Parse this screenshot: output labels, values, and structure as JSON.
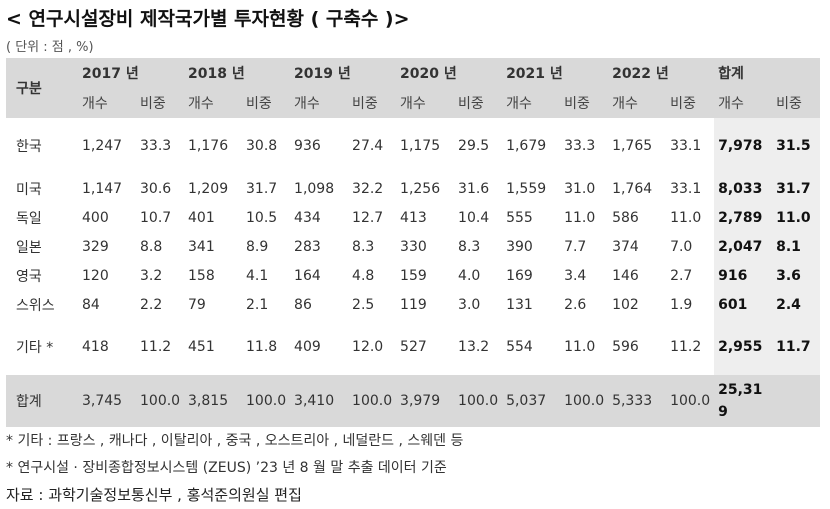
{
  "title": "< 연구시설장비 제작국가별 투자현황 ( 구축수 )>",
  "unit": "( 단위 : 점 , %)",
  "table": {
    "gubun": "구분",
    "years": [
      "2017 년",
      "2018 년",
      "2019 년",
      "2020 년",
      "2021 년",
      "2022 년"
    ],
    "total_header": "합계",
    "sub_count": "개수",
    "sub_ratio": "비중",
    "rows": [
      {
        "label": "한국",
        "cells": [
          "1,247",
          "33.3",
          "1,176",
          "30.8",
          "936",
          "27.4",
          "1,175",
          "29.5",
          "1,679",
          "33.3",
          "1,765",
          "33.1"
        ],
        "total": "7,978",
        "ratio": "31.5"
      },
      {
        "label": "미국",
        "cells": [
          "1,147",
          "30.6",
          "1,209",
          "31.7",
          "1,098",
          "32.2",
          "1,256",
          "31.6",
          "1,559",
          "31.0",
          "1,764",
          "33.1"
        ],
        "total": "8,033",
        "ratio": "31.7"
      },
      {
        "label": "독일",
        "cells": [
          "400",
          "10.7",
          "401",
          "10.5",
          "434",
          "12.7",
          "413",
          "10.4",
          "555",
          "11.0",
          "586",
          "11.0"
        ],
        "total": "2,789",
        "ratio": "11.0"
      },
      {
        "label": "일본",
        "cells": [
          "329",
          "8.8",
          "341",
          "8.9",
          "283",
          "8.3",
          "330",
          "8.3",
          "390",
          "7.7",
          "374",
          "7.0"
        ],
        "total": "2,047",
        "ratio": "8.1"
      },
      {
        "label": "영국",
        "cells": [
          "120",
          "3.2",
          "158",
          "4.1",
          "164",
          "4.8",
          "159",
          "4.0",
          "169",
          "3.4",
          "146",
          "2.7"
        ],
        "total": "916",
        "ratio": "3.6"
      },
      {
        "label": "스위스",
        "cells": [
          "84",
          "2.2",
          "79",
          "2.1",
          "86",
          "2.5",
          "119",
          "3.0",
          "131",
          "2.6",
          "102",
          "1.9"
        ],
        "total": "601",
        "ratio": "2.4"
      },
      {
        "label": "기타 *",
        "cells": [
          "418",
          "11.2",
          "451",
          "11.8",
          "409",
          "12.0",
          "527",
          "13.2",
          "554",
          "11.0",
          "596",
          "11.2"
        ],
        "total": "2,955",
        "ratio": "11.7"
      }
    ],
    "total_row": {
      "label": "합계",
      "cells": [
        "3,745",
        "100.0",
        "3,815",
        "100.0",
        "3,410",
        "100.0",
        "3,979",
        "100.0",
        "5,037",
        "100.0",
        "5,333",
        "100.0"
      ],
      "total": "25,319",
      "ratio": ""
    }
  },
  "notes": {
    "note1": "* 기타 : 프랑스 , 캐나다 , 이탈리아 , 중국 , 오스트리아 , 네덜란드 , 스웨덴 등",
    "note2": "* 연구시설 · 장비종합정보시스템 (ZEUS) ’23 년 8 월 말 추출 데이터 기준",
    "source": "자료 : 과학기술정보통신부 , 홍석준의원실 편집"
  }
}
